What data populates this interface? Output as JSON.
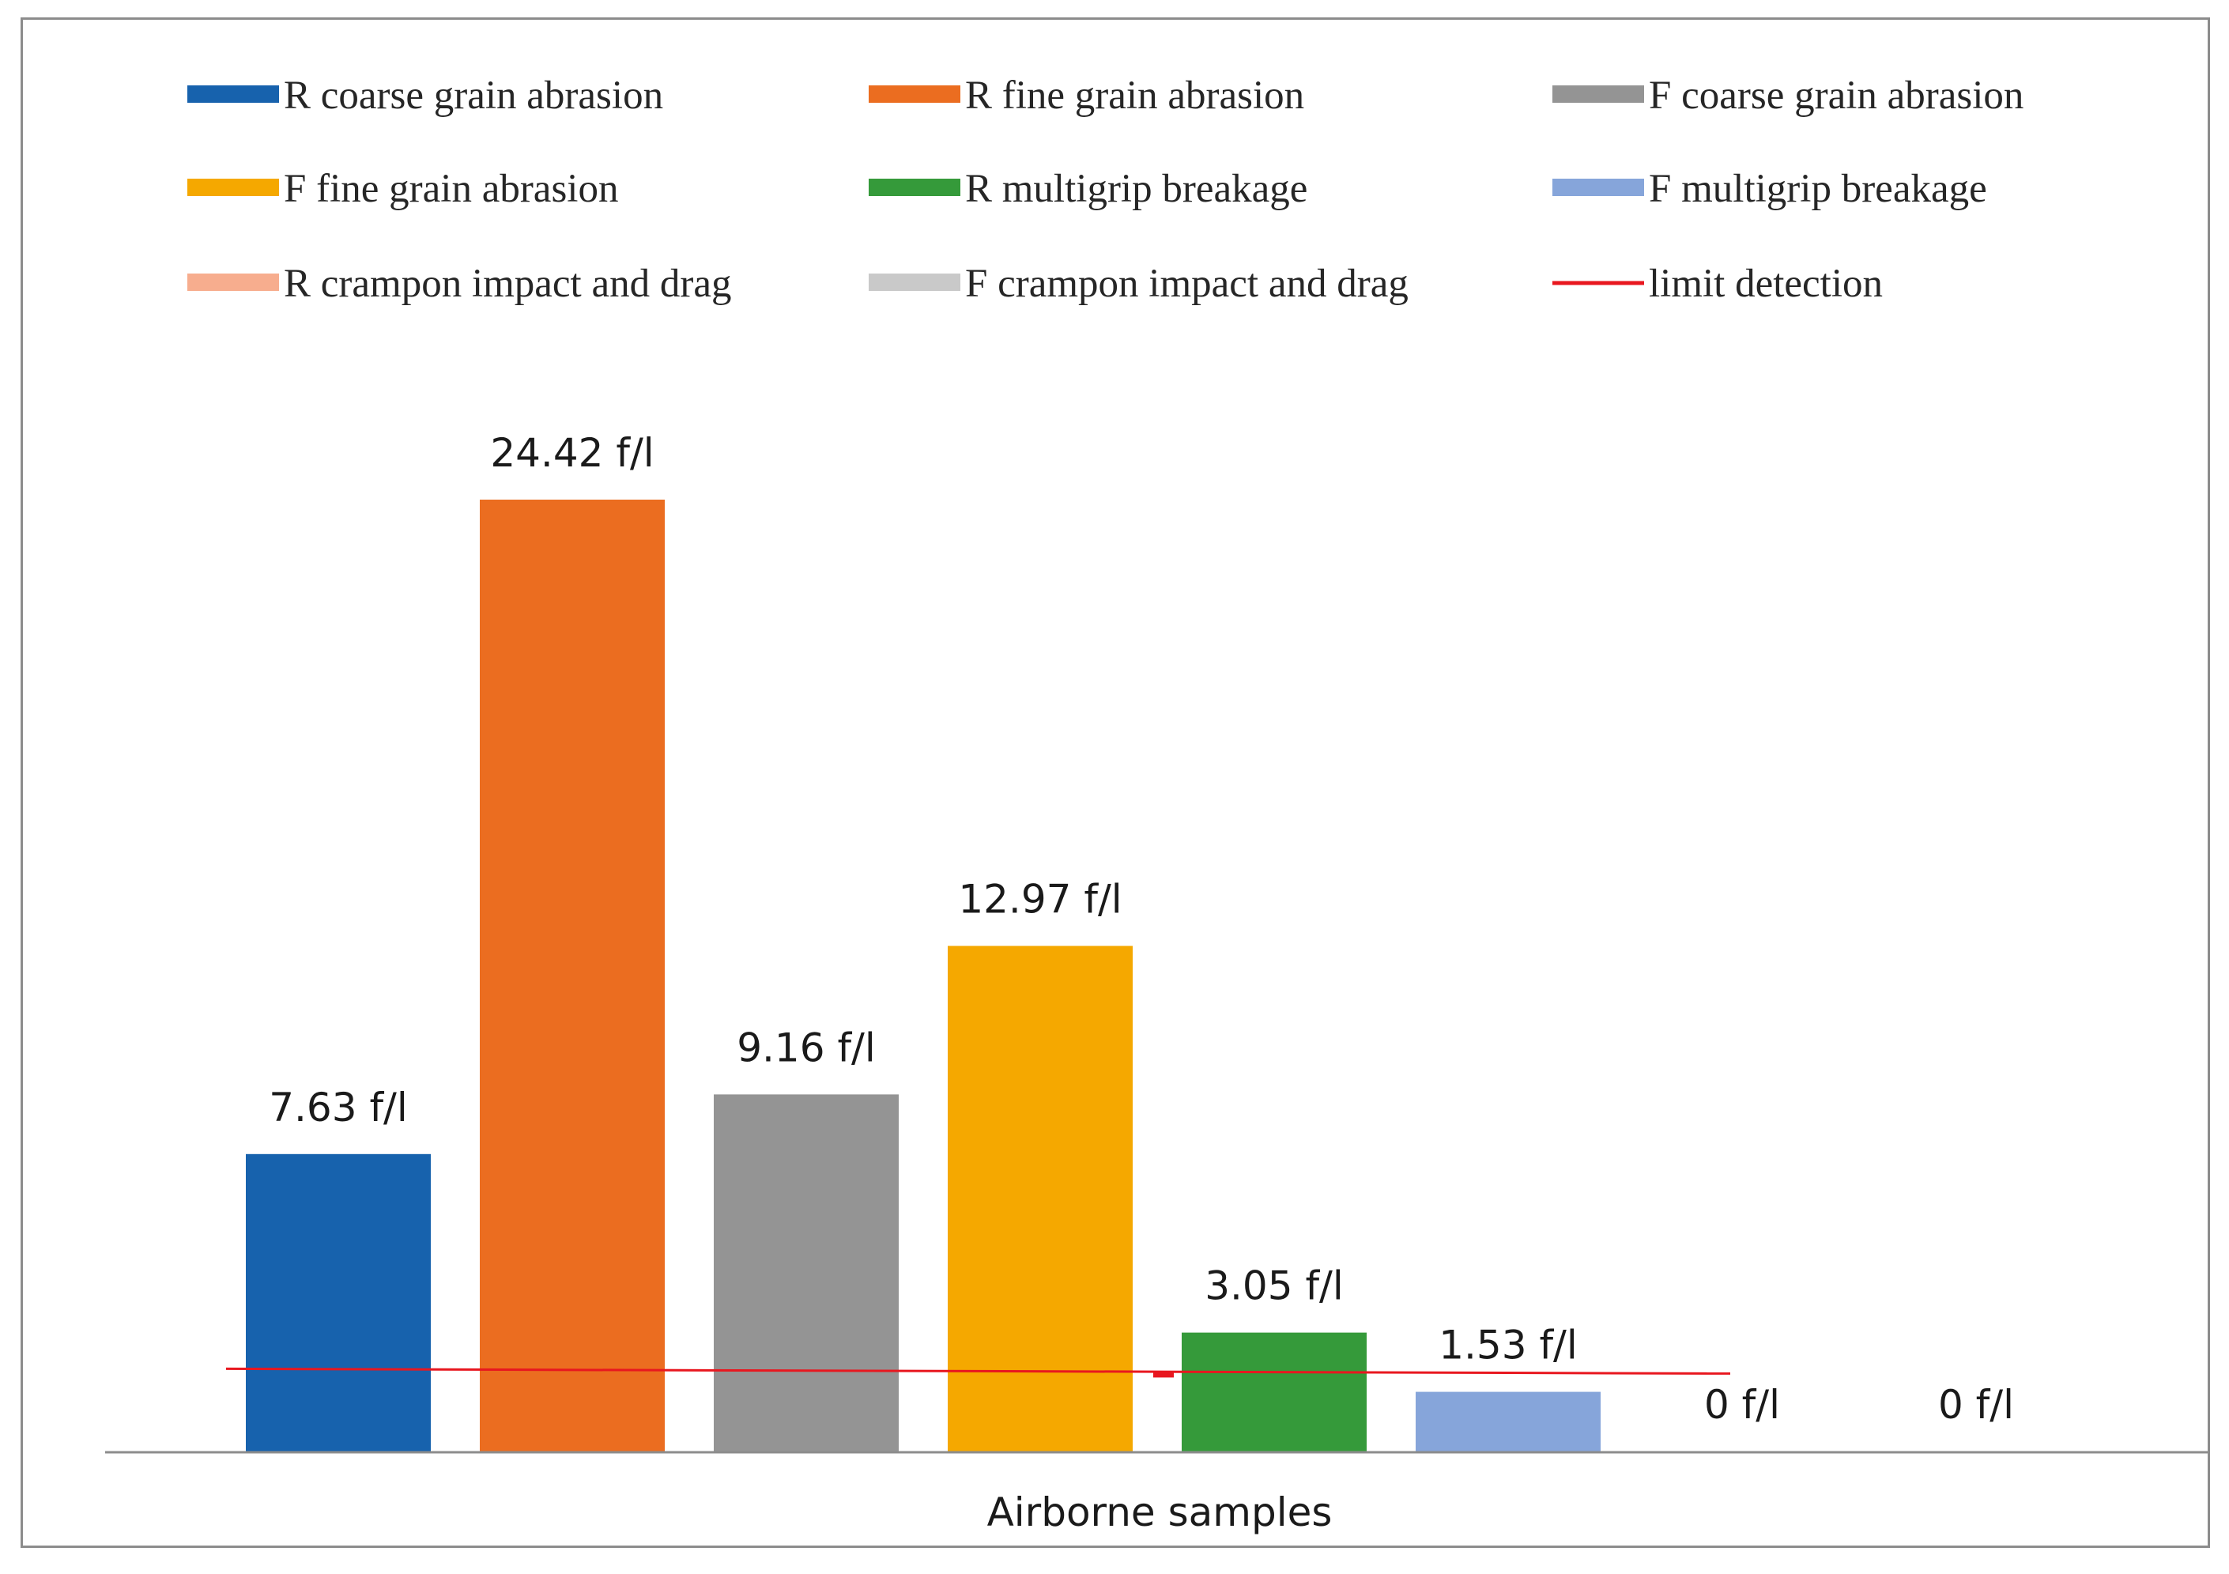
{
  "chart_data": {
    "type": "bar",
    "title": "",
    "xlabel": "Airborne samples",
    "ylabel": "",
    "ylim": [
      0,
      26
    ],
    "grid": false,
    "legend_position": "top",
    "unit": "f/l",
    "series": [
      {
        "name": "R coarse grain abrasion",
        "value": 7.63,
        "label": "7.63 f/l",
        "color": "#1762ad"
      },
      {
        "name": "R fine grain abrasion",
        "value": 24.42,
        "label": "24.42 f/l",
        "color": "#eb6d20"
      },
      {
        "name": "F coarse grain abrasion",
        "value": 9.16,
        "label": "9.16 f/l",
        "color": "#949494"
      },
      {
        "name": "F fine grain abrasion",
        "value": 12.97,
        "label": "12.97 f/l",
        "color": "#f5a800"
      },
      {
        "name": "R multigrip breakage",
        "value": 3.05,
        "label": "3.05 f/l",
        "color": "#359a3a"
      },
      {
        "name": "F multigrip breakage",
        "value": 1.53,
        "label": "1.53 f/l",
        "color": "#86a5da"
      },
      {
        "name": "R crampon impact and drag",
        "value": 0,
        "label": "0 f/l",
        "color": "#f7ad8e"
      },
      {
        "name": "F crampon impact and drag",
        "value": 0,
        "label": "0 f/l",
        "color": "#c9c9c9"
      }
    ],
    "reference_line": {
      "name": "limit detection",
      "value": 2.06,
      "color": "#e8171f"
    }
  }
}
